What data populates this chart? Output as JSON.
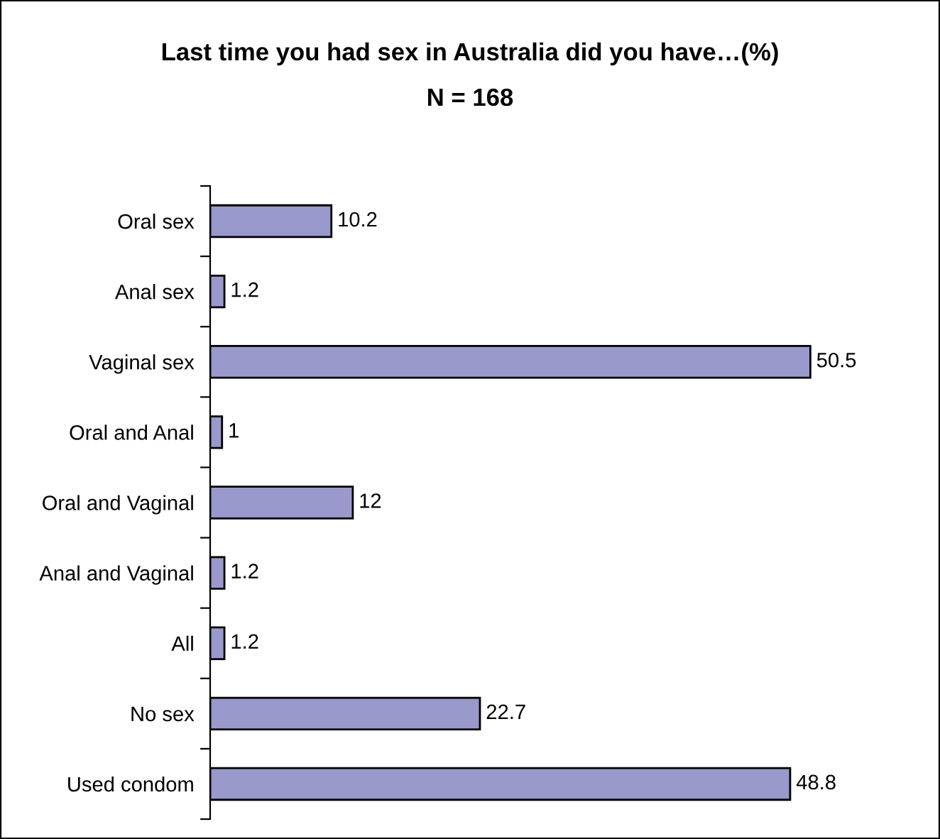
{
  "chart_data": {
    "type": "bar",
    "orientation": "horizontal",
    "title": "Last time you had sex in Australia did you have…(%)",
    "subtitle": "N = 168",
    "categories": [
      "Oral sex",
      "Anal sex",
      "Vaginal sex",
      "Oral and Anal",
      "Oral and Vaginal",
      "Anal and Vaginal",
      "All",
      "No sex",
      "Used condom"
    ],
    "values": [
      10.2,
      1.2,
      50.5,
      1,
      12,
      1.2,
      1.2,
      22.7,
      48.8
    ],
    "color": "#9999cc",
    "data_labels": true
  }
}
